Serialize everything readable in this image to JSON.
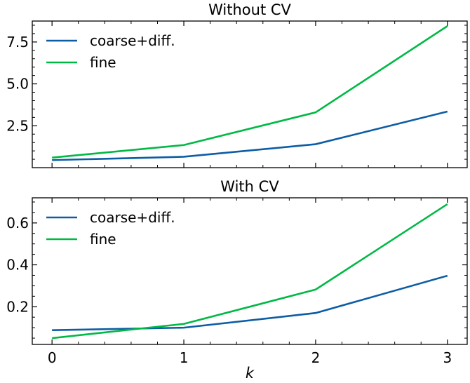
{
  "chart_data": [
    {
      "type": "line",
      "title": "Without CV",
      "xlabel": "",
      "ylabel": "",
      "x": [
        0,
        1,
        2,
        3
      ],
      "xlim": [
        -0.15,
        3.15
      ],
      "ylim": [
        0.0,
        8.75
      ],
      "yticks": [
        2.5,
        5.0,
        7.5
      ],
      "ytick_labels": [
        "2.5",
        "5.0",
        "7.5"
      ],
      "xticks": [
        0,
        1,
        2,
        3
      ],
      "xtick_labels": [],
      "grid": false,
      "legend": "upper-left",
      "series": [
        {
          "name": "coarse+diff.",
          "color": "#0C5DA5",
          "values": [
            0.45,
            0.65,
            1.4,
            3.35
          ]
        },
        {
          "name": "fine",
          "color": "#00B945",
          "values": [
            0.6,
            1.35,
            3.3,
            8.45
          ]
        }
      ]
    },
    {
      "type": "line",
      "title": "With CV",
      "xlabel": "k",
      "ylabel": "",
      "x": [
        0,
        1,
        2,
        3
      ],
      "xlim": [
        -0.15,
        3.15
      ],
      "ylim": [
        0.02,
        0.72
      ],
      "yticks": [
        0.2,
        0.4,
        0.6
      ],
      "ytick_labels": [
        "0.2",
        "0.4",
        "0.6"
      ],
      "xticks": [
        0,
        1,
        2,
        3
      ],
      "xtick_labels": [
        "0",
        "1",
        "2",
        "3"
      ],
      "grid": false,
      "legend": "upper-left",
      "series": [
        {
          "name": "coarse+diff.",
          "color": "#0C5DA5",
          "values": [
            0.088,
            0.1,
            0.17,
            0.348
          ]
        },
        {
          "name": "fine",
          "color": "#00B945",
          "values": [
            0.05,
            0.118,
            0.282,
            0.69
          ]
        }
      ]
    }
  ]
}
